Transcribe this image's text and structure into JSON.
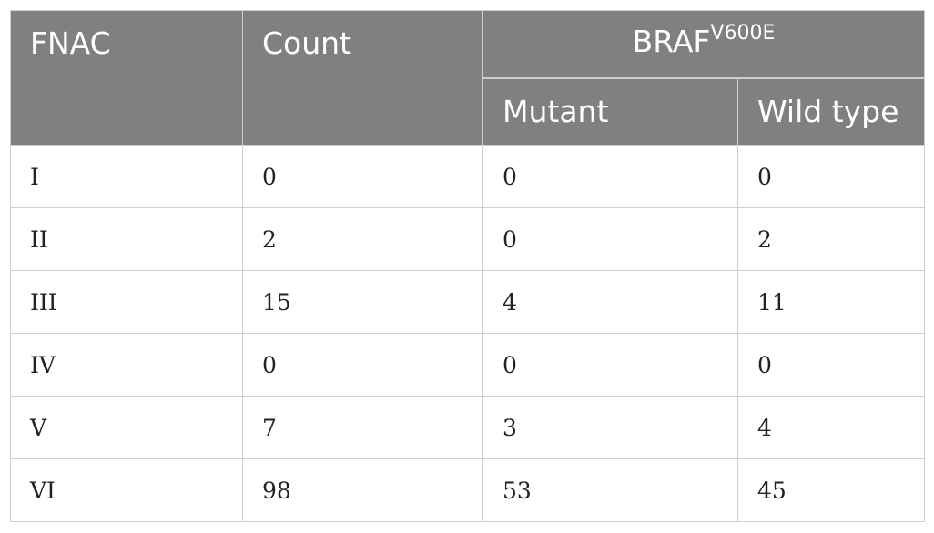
{
  "table": {
    "headers": {
      "fnac": "FNAC",
      "count": "Count",
      "group": "BRAF",
      "group_sup": "V600E",
      "mutant": "Mutant",
      "wild_type": "Wild type"
    },
    "rows": [
      {
        "fnac": "I",
        "count": "0",
        "mutant": "0",
        "wild_type": "0"
      },
      {
        "fnac": "II",
        "count": "2",
        "mutant": "0",
        "wild_type": "2"
      },
      {
        "fnac": "III",
        "count": "15",
        "mutant": "4",
        "wild_type": "11"
      },
      {
        "fnac": "IV",
        "count": "0",
        "mutant": "0",
        "wild_type": "0"
      },
      {
        "fnac": "V",
        "count": "7",
        "mutant": "3",
        "wild_type": "4"
      },
      {
        "fnac": "VI",
        "count": "98",
        "mutant": "53",
        "wild_type": "45"
      }
    ]
  },
  "colors": {
    "header_bg": "#808080",
    "header_text": "#ffffff",
    "grid": "#cfcfcf"
  }
}
